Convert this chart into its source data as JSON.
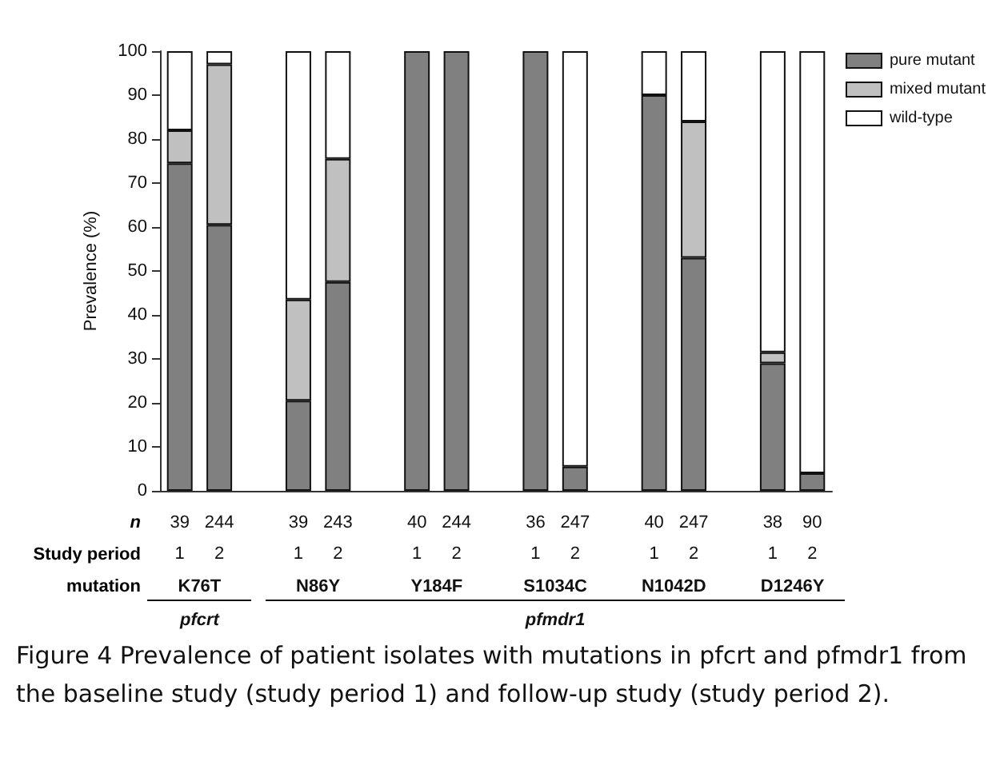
{
  "chart_data": {
    "type": "bar",
    "stacked": true,
    "ylabel": "Prevalence (%)",
    "xlabel": "Study period",
    "ylim": [
      0,
      100
    ],
    "yticks": [
      0,
      10,
      20,
      30,
      40,
      50,
      60,
      70,
      80,
      90,
      100
    ],
    "grid": false,
    "legend": "top right",
    "categories": [
      "1",
      "2",
      null,
      "1",
      "2",
      null,
      "1",
      "2",
      null,
      "1",
      "2",
      null,
      "1",
      "2",
      null,
      "1",
      "2"
    ],
    "series": [
      {
        "name": "pure mutant",
        "color": "#808080",
        "values": [
          74.5,
          60.5,
          null,
          20.5,
          47.5,
          null,
          100,
          100,
          null,
          100,
          5.5,
          null,
          90,
          53,
          null,
          29,
          4
        ]
      },
      {
        "name": "mixed mutant",
        "color": "#c0c0c0",
        "values": [
          7.5,
          36.5,
          null,
          23,
          28,
          null,
          0,
          0,
          null,
          0,
          0,
          null,
          0,
          31,
          null,
          2.5,
          0
        ]
      },
      {
        "name": "wild-type",
        "color": "#ffffff",
        "values": [
          18,
          3,
          null,
          56.5,
          24.5,
          null,
          0,
          0,
          null,
          0,
          94.5,
          null,
          10,
          16,
          null,
          68.5,
          96
        ]
      }
    ],
    "annotations": [
      "n",
      "39",
      "244",
      "39",
      "243",
      "40",
      "244",
      "36",
      "247",
      "40",
      "247",
      "38",
      "90",
      "mutation",
      "K76T",
      "N86Y",
      "Y184F",
      "S1034C",
      "N1042D",
      "D1246Y",
      "pfcrt",
      "pfmdr1",
      "Figure 4 Prevalence of patient isolates with mutations in pfcrt and pfmdr1 from the baseline study (study period 1) and follow-up study (study period 2)."
    ]
  }
}
